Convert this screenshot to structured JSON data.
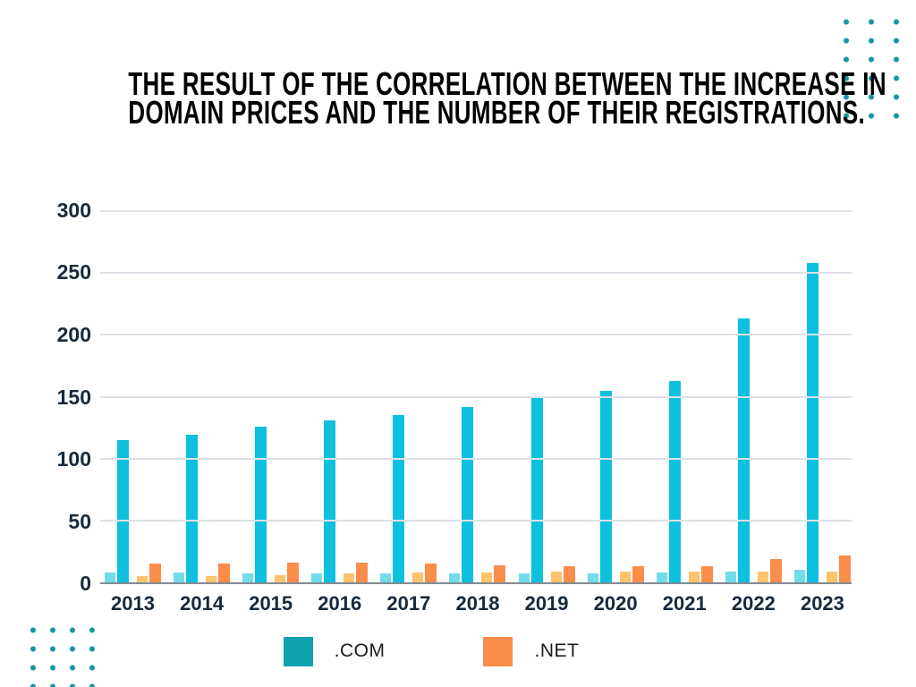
{
  "page": {
    "background": "#ffffff",
    "title_lines": [
      "THE RESULT OF THE CORRELATION BETWEEN THE INCREASE IN",
      "DOMAIN PRICES AND THE NUMBER OF THEIR REGISTRATIONS."
    ],
    "title_color": "#000000"
  },
  "decor": {
    "dot_color": "#1496a4"
  },
  "chart_data": {
    "type": "bar",
    "title": "THE RESULT OF THE CORRELATION BETWEEN THE INCREASE IN DOMAIN PRICES AND THE NUMBER OF THEIR REGISTRATIONS.",
    "categories": [
      "2013",
      "2014",
      "2015",
      "2016",
      "2017",
      "2018",
      "2019",
      "2020",
      "2021",
      "2022",
      "2023"
    ],
    "series": [
      {
        "key": "com-light",
        "color": "#72dcea",
        "values": [
          8,
          8,
          7,
          7,
          7,
          7,
          7,
          7,
          8,
          9,
          10
        ]
      },
      {
        "key": "com",
        "color": "#0cc0de",
        "values": [
          115,
          119,
          126,
          131,
          135,
          142,
          149,
          155,
          163,
          213,
          258
        ]
      },
      {
        "key": "net-light",
        "color": "#ffc36b",
        "values": [
          5,
          5,
          6,
          7,
          8,
          8,
          9,
          9,
          9,
          9,
          9
        ]
      },
      {
        "key": "net",
        "color": "#fb8d4a",
        "values": [
          15,
          15,
          16,
          16,
          15,
          14,
          13,
          13,
          13,
          19,
          22
        ]
      }
    ],
    "xlabel": "",
    "ylabel": "",
    "ylim": [
      0,
      300
    ],
    "yticks": [
      300,
      250,
      200,
      150,
      100,
      50,
      0
    ],
    "grid": true,
    "gridline_color": "#dde1e6",
    "baseline_color": "#828c95",
    "axis_label_color": "#17293d",
    "legend_position": "bottom"
  },
  "legend": {
    "items": [
      {
        "label": ".COM",
        "color": "#10a3ad"
      },
      {
        "label": ".NET",
        "color": "#fb8d4a"
      }
    ]
  }
}
